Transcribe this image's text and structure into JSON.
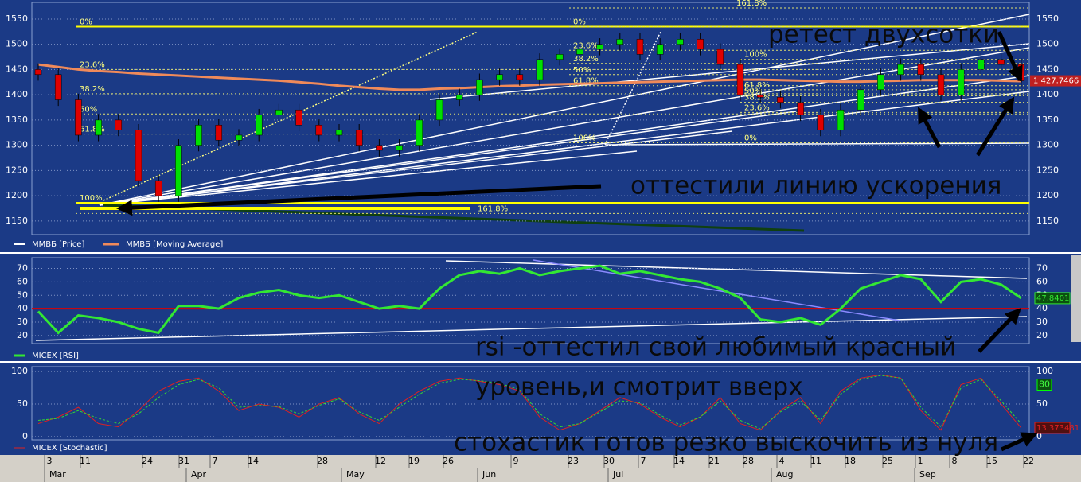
{
  "chart_data": [
    {
      "type": "candlestick",
      "series_name": "ММВБ [Price]",
      "ma_name": "ММВБ [Moving Average]",
      "ma_color": "#f08a5a",
      "up_color": "#00e000",
      "down_color": "#e00000",
      "ylim": [
        1123,
        1583
      ],
      "yticks": [
        1150,
        1200,
        1250,
        1300,
        1350,
        1400,
        1450,
        1500,
        1550
      ],
      "open": [
        1450,
        1440,
        1390,
        1320,
        1350,
        1330,
        1230,
        1200,
        1300,
        1340,
        1310,
        1320,
        1360,
        1370,
        1340,
        1320,
        1330,
        1300,
        1290,
        1300,
        1350,
        1390,
        1400,
        1430,
        1440,
        1430,
        1470,
        1480,
        1490,
        1500,
        1510,
        1480,
        1500,
        1510,
        1490,
        1460,
        1400,
        1395,
        1385,
        1360,
        1330,
        1370,
        1410,
        1440,
        1460,
        1440,
        1400,
        1450,
        1470,
        1460
      ],
      "high": [
        1462,
        1452,
        1402,
        1362,
        1362,
        1342,
        1242,
        1312,
        1352,
        1352,
        1332,
        1372,
        1382,
        1382,
        1352,
        1342,
        1342,
        1312,
        1312,
        1362,
        1402,
        1412,
        1442,
        1452,
        1452,
        1482,
        1492,
        1502,
        1512,
        1522,
        1522,
        1512,
        1522,
        1522,
        1502,
        1472,
        1412,
        1407,
        1397,
        1372,
        1382,
        1422,
        1452,
        1472,
        1472,
        1452,
        1462,
        1482,
        1482,
        1472
      ],
      "low": [
        1428,
        1378,
        1308,
        1308,
        1318,
        1218,
        1188,
        1188,
        1288,
        1298,
        1298,
        1308,
        1348,
        1328,
        1308,
        1308,
        1288,
        1278,
        1278,
        1288,
        1338,
        1378,
        1388,
        1418,
        1418,
        1418,
        1458,
        1468,
        1478,
        1488,
        1468,
        1468,
        1488,
        1478,
        1448,
        1388,
        1383,
        1373,
        1348,
        1318,
        1318,
        1358,
        1398,
        1428,
        1428,
        1388,
        1388,
        1438,
        1448,
        1416
      ],
      "close": [
        1440,
        1390,
        1320,
        1350,
        1330,
        1230,
        1200,
        1300,
        1340,
        1310,
        1320,
        1360,
        1370,
        1340,
        1320,
        1330,
        1300,
        1290,
        1300,
        1350,
        1390,
        1400,
        1430,
        1440,
        1430,
        1470,
        1480,
        1490,
        1500,
        1510,
        1480,
        1500,
        1510,
        1490,
        1460,
        1400,
        1395,
        1385,
        1360,
        1330,
        1370,
        1410,
        1440,
        1460,
        1440,
        1400,
        1450,
        1470,
        1460,
        1427.7466
      ],
      "close_value_label": "1 427.7466",
      "ma": [
        1460,
        1455,
        1450,
        1447,
        1445,
        1442,
        1440,
        1438,
        1436,
        1434,
        1432,
        1430,
        1428,
        1425,
        1422,
        1418,
        1415,
        1412,
        1410,
        1410,
        1412,
        1413,
        1415,
        1417,
        1418,
        1420,
        1421,
        1422,
        1423,
        1424,
        1425,
        1426,
        1427,
        1428,
        1429,
        1430,
        1430,
        1429,
        1428,
        1427,
        1426,
        1426,
        1427,
        1428,
        1429,
        1429,
        1429,
        1429,
        1428,
        1427
      ],
      "fib_groups": [
        [
          {
            "label": "0%",
            "value": 1535
          },
          {
            "label": "23.6%",
            "value": 1450
          },
          {
            "label": "38.2%",
            "value": 1402
          },
          {
            "label": "50%",
            "value": 1362
          },
          {
            "label": "61.8%",
            "value": 1322
          },
          {
            "label": "100%",
            "value": 1186
          },
          {
            "label": "161.8%",
            "value": 1165
          }
        ],
        [
          {
            "label": "0%",
            "value": 1535
          },
          {
            "label": "23.6%",
            "value": 1488
          },
          {
            "label": "38.2%",
            "value": 1462
          },
          {
            "label": "50%",
            "value": 1440
          },
          {
            "label": "61.8%",
            "value": 1418
          },
          {
            "label": "100%",
            "value": 1305
          },
          {
            "label": "161.8%",
            "value": 1572
          }
        ],
        [
          {
            "label": "100%",
            "value": 1470
          },
          {
            "label": "61.8%",
            "value": 1410
          },
          {
            "label": "50%",
            "value": 1398
          },
          {
            "label": "38.2%",
            "value": 1385
          },
          {
            "label": "23.6%",
            "value": 1365
          },
          {
            "label": "0%",
            "value": 1305
          }
        ]
      ],
      "annotations": [
        "ретест двухсотки",
        "оттестили линию ускорения"
      ]
    },
    {
      "type": "line",
      "ylim": [
        14,
        78
      ],
      "yticks": [
        20,
        30,
        40,
        50,
        60,
        70
      ],
      "level": 40,
      "level_color": "#e00000",
      "series": [
        {
          "name": "MICEX [RSI]",
          "color": "#33e833",
          "values": [
            38,
            22,
            35,
            33,
            30,
            25,
            22,
            42,
            42,
            40,
            48,
            52,
            54,
            50,
            48,
            50,
            45,
            40,
            42,
            40,
            55,
            65,
            68,
            66,
            70,
            65,
            68,
            70,
            72,
            66,
            68,
            65,
            62,
            60,
            55,
            48,
            32,
            30,
            33,
            28,
            40,
            55,
            60,
            65,
            62,
            45,
            60,
            62,
            58,
            47.8401
          ]
        }
      ],
      "annotations": [
        "rsi -оттестил свой любимый красный",
        "уровень,и смотрит вверх"
      ]
    },
    {
      "type": "line",
      "ylim": [
        -5,
        107.5
      ],
      "yticks": [
        0,
        50,
        100
      ],
      "level": 80,
      "series": [
        {
          "name": "MICEX [Stochastic]",
          "color": "#e02020",
          "values": [
            20,
            30,
            45,
            20,
            15,
            40,
            70,
            85,
            90,
            70,
            40,
            50,
            45,
            30,
            50,
            60,
            35,
            20,
            50,
            70,
            85,
            90,
            85,
            80,
            70,
            30,
            10,
            20,
            40,
            60,
            50,
            30,
            15,
            30,
            60,
            20,
            10,
            40,
            60,
            20,
            70,
            90,
            95,
            90,
            40,
            10,
            80,
            90,
            50,
            13.373481
          ]
        },
        {
          "color": "#33d833",
          "values": [
            25,
            28,
            40,
            28,
            20,
            35,
            60,
            80,
            88,
            75,
            45,
            48,
            46,
            35,
            48,
            58,
            38,
            25,
            45,
            65,
            82,
            88,
            86,
            82,
            72,
            35,
            15,
            20,
            38,
            55,
            52,
            33,
            18,
            30,
            55,
            25,
            12,
            38,
            55,
            25,
            65,
            88,
            94,
            90,
            45,
            15,
            75,
            88,
            55,
            20
          ]
        }
      ],
      "annotations": [
        "стохастик готов резко выскочить из нуля"
      ]
    }
  ],
  "x_axis": {
    "days": [
      "3",
      "11",
      "24",
      "31",
      "7",
      "14",
      "28",
      "12",
      "19",
      "26",
      "9",
      "23",
      "30",
      "7",
      "14",
      "21",
      "28",
      "4",
      "11",
      "18",
      "25",
      "1",
      "8",
      "15",
      "22"
    ],
    "months": [
      "Mar",
      "Apr",
      "May",
      "Jun",
      "Jul",
      "Aug",
      "Sep"
    ]
  }
}
